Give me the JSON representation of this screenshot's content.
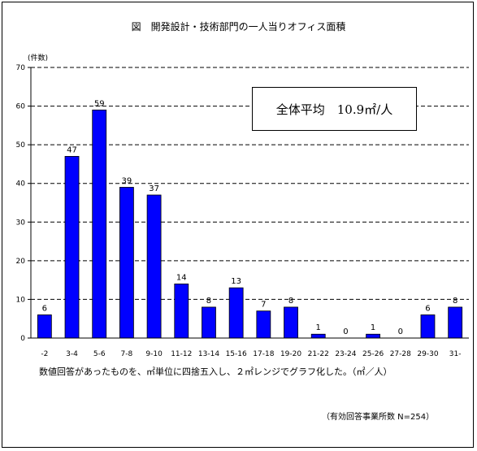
{
  "title": "図　開発設計・技術部門の一人当りオフィス面積",
  "unit_label": "(件数)",
  "callout": "全体平均　10.9㎡/人",
  "note": "数値回答があったものを、㎡単位に四捨五入し、２㎡レンジでグラフ化した。（㎡／人）",
  "source": "（有効回答事業所数 N=254）",
  "colors": {
    "bar": "#0000ff",
    "axis": "#000000",
    "grid": "#000000"
  },
  "chart_data": {
    "type": "bar",
    "title": "図　開発設計・技術部門の一人当りオフィス面積",
    "ylabel": "(件数)",
    "xlabel": "（㎡／人）",
    "categories": [
      "-2",
      "3-4",
      "5-6",
      "7-8",
      "9-10",
      "11-12",
      "13-14",
      "15-16",
      "17-18",
      "19-20",
      "21-22",
      "23-24",
      "25-26",
      "27-28",
      "29-30",
      "31-"
    ],
    "values": [
      6,
      47,
      59,
      39,
      37,
      14,
      8,
      13,
      7,
      8,
      1,
      0,
      1,
      0,
      6,
      8
    ],
    "ylim": [
      0,
      70
    ],
    "yticks": [
      0,
      10,
      20,
      30,
      40,
      50,
      60,
      70
    ],
    "grid": "dashed horizontal",
    "annotation": "全体平均　10.9㎡/人"
  }
}
